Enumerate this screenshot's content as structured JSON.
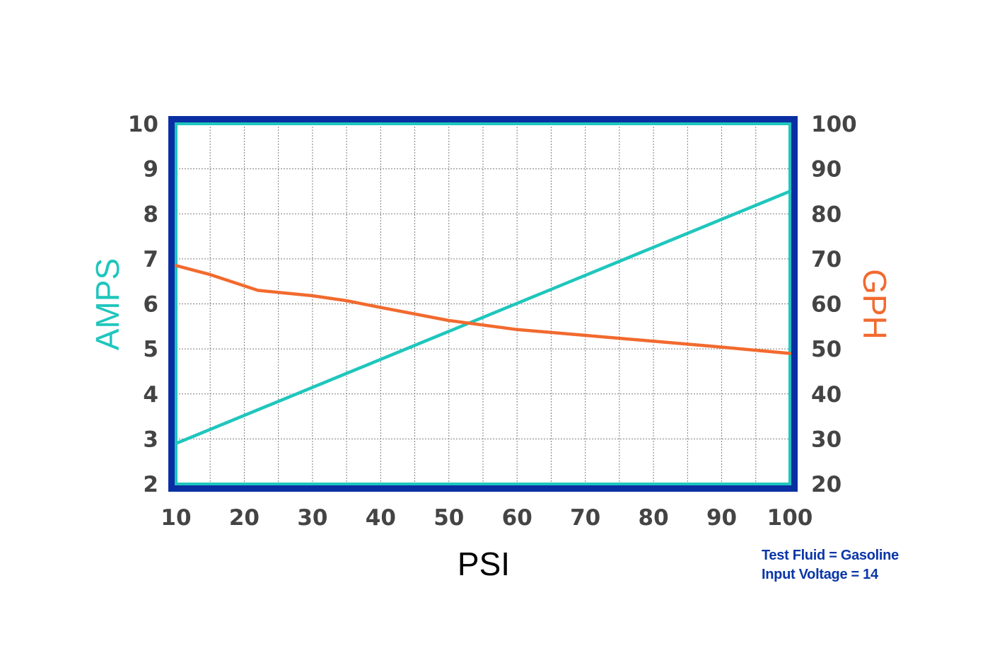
{
  "chart_data": {
    "type": "line",
    "title": "",
    "xlabel": "PSI",
    "ylabel_left": "AMPS",
    "ylabel_right": "GPH",
    "xlim": [
      10,
      100
    ],
    "ylim_left": [
      2,
      10
    ],
    "ylim_right": [
      20,
      100
    ],
    "x_ticks": [
      "10",
      "20",
      "30",
      "40",
      "50",
      "60",
      "70",
      "80",
      "90",
      "100"
    ],
    "y_left_ticks": [
      "2",
      "3",
      "4",
      "5",
      "6",
      "7",
      "8",
      "9",
      "10"
    ],
    "y_right_ticks": [
      "20",
      "30",
      "40",
      "50",
      "60",
      "70",
      "80",
      "90",
      "100"
    ],
    "grid": true,
    "series": [
      {
        "name": "AMPS",
        "axis": "left",
        "color": "#1fc6bd",
        "x": [
          10,
          100
        ],
        "y": [
          2.9,
          8.5
        ]
      },
      {
        "name": "GPH",
        "axis": "right",
        "color": "#f26a2e",
        "x": [
          10,
          15,
          22,
          30,
          35,
          40,
          50,
          60,
          70,
          80,
          90,
          100
        ],
        "y": [
          68.5,
          66.5,
          63,
          61.8,
          60.7,
          59.2,
          56.3,
          54.3,
          53,
          51.7,
          50.4,
          49
        ]
      }
    ],
    "annotations": [
      "Test Fluid = Gasoline",
      "Input Voltage = 14"
    ]
  },
  "colors": {
    "frame": "#0a2fa3",
    "inner_border": "#1fc6bd",
    "amps": "#1fc6bd",
    "gph": "#f26a2e",
    "tick_text": "#444444",
    "psi_title": "#000000",
    "note_text": "#0a36a8"
  }
}
